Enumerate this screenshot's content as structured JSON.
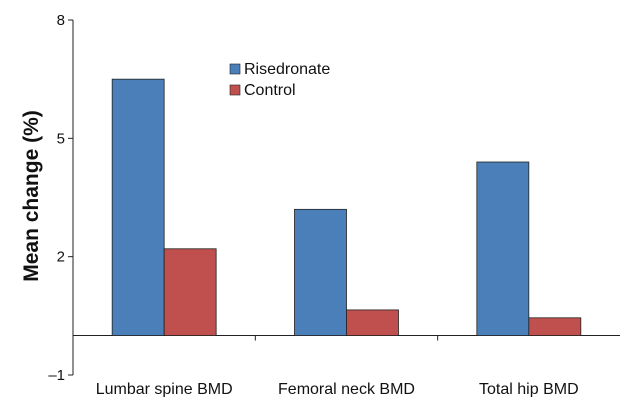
{
  "chart_data": {
    "type": "bar",
    "title": "",
    "xlabel": "",
    "ylabel": "Mean change (%)",
    "ylim": [
      -1,
      8
    ],
    "yticks": [
      -1,
      2,
      5,
      8
    ],
    "ytick_labels": [
      "–1",
      "2",
      "5",
      "8"
    ],
    "categories": [
      "Lumbar spine BMD",
      "Femoral neck BMD",
      "Total hip BMD"
    ],
    "series": [
      {
        "name": "Risedronate",
        "color": "#4a7fb9",
        "values": [
          6.5,
          3.2,
          4.4
        ]
      },
      {
        "name": "Control",
        "color": "#c0504d",
        "values": [
          2.2,
          0.65,
          0.45
        ]
      }
    ],
    "legend_position": "top-center",
    "grid": false
  }
}
